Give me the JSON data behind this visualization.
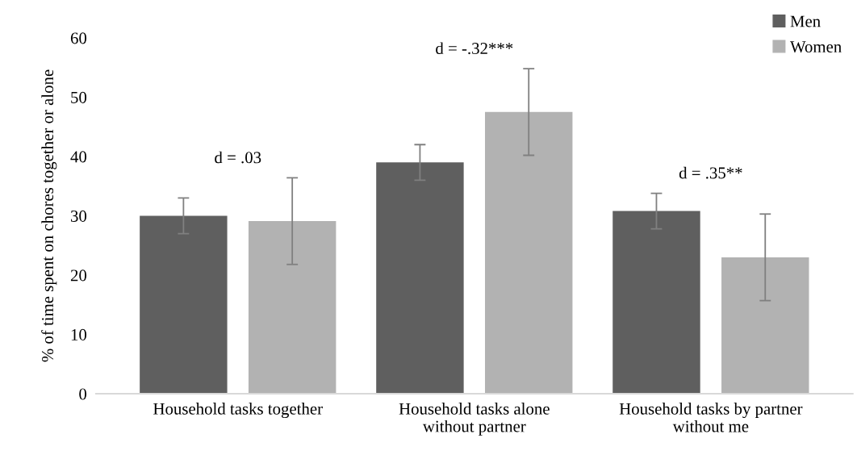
{
  "chart_data": {
    "type": "bar",
    "ylabel": "% of time spent on chores together or alone",
    "categories": [
      "Household tasks together",
      "Household tasks alone\nwithout partner",
      "Household tasks by partner\nwithout me"
    ],
    "series": [
      {
        "name": "Men",
        "color": "#5f5f5f",
        "values": [
          30.0,
          39.0,
          30.8
        ],
        "errors": [
          3,
          3,
          3
        ]
      },
      {
        "name": "Women",
        "color": "#b2b2b2",
        "values": [
          29.1,
          47.5,
          23.0
        ],
        "errors": [
          7.3,
          7.3,
          7.3
        ]
      }
    ],
    "ylim": [
      0,
      60
    ],
    "yticks": [
      0,
      10,
      20,
      30,
      40,
      50,
      60
    ],
    "grid": false,
    "legend": "top right",
    "annotations": [
      "d = .03",
      "d = -.32***",
      "d = .35**"
    ]
  }
}
